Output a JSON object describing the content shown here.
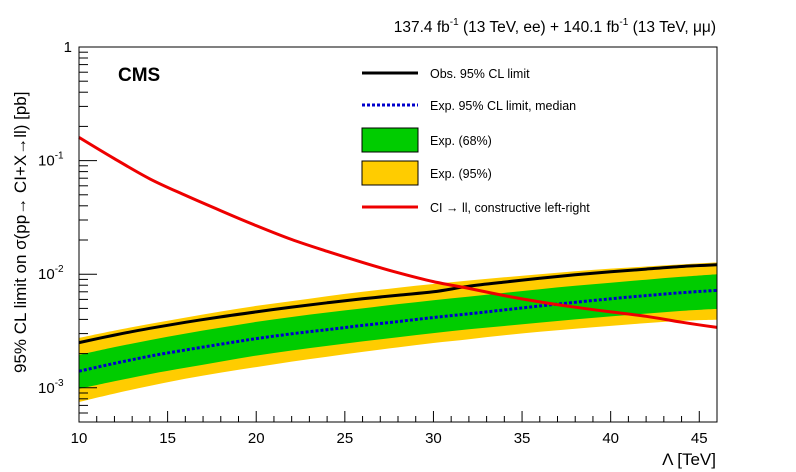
{
  "chart_data": {
    "type": "line",
    "top_label": {
      "lumi_ee": "137.4 fb",
      "sup_ee": "-1",
      "mid": " (13 TeV, ee) + 140.1 fb",
      "sup_mm": "-1",
      "tail": " (13 TeV, μμ)"
    },
    "experiment_label": "CMS",
    "xlabel": "Λ [TeV]",
    "ylabel": "95% CL limit on σ(pp→ CI+X→ll) [pb]",
    "xlim": [
      10,
      46
    ],
    "ylim": [
      0.0005,
      1
    ],
    "yscale": "log",
    "x_ticks": [
      "10",
      "15",
      "20",
      "25",
      "30",
      "35",
      "40",
      "45"
    ],
    "x_tick_values": [
      10,
      15,
      20,
      25,
      30,
      35,
      40,
      45
    ],
    "y_ticks": [
      {
        "base": "10",
        "exp": "-3",
        "value": 0.001
      },
      {
        "base": "10",
        "exp": "-2",
        "value": 0.01
      },
      {
        "base": "10",
        "exp": "-1",
        "value": 0.1
      },
      {
        "base": "1",
        "exp": "",
        "value": 1
      }
    ],
    "legend": [
      {
        "label": "Obs. 95% CL limit",
        "style": "line",
        "color": "#000000"
      },
      {
        "label": "Exp. 95% CL limit, median",
        "style": "dotted",
        "color": "#0000cc"
      },
      {
        "label": "Exp. (68%)",
        "style": "box",
        "color": "#00cc00"
      },
      {
        "label": "Exp. (95%)",
        "style": "box",
        "color": "#ffcc00"
      },
      {
        "label": "CI → ll, constructive left-right",
        "style": "line",
        "color": "#ee0000"
      }
    ],
    "legend_position": "top-right",
    "x": [
      10,
      12,
      14,
      16,
      18,
      20,
      22,
      24,
      26,
      28,
      30,
      32,
      34,
      36,
      38,
      40,
      42,
      44,
      46
    ],
    "series": [
      {
        "name": "Obs. 95% CL limit",
        "color": "#000000",
        "values": [
          0.0025,
          0.00291,
          0.00334,
          0.00377,
          0.00421,
          0.00466,
          0.00513,
          0.0056,
          0.00607,
          0.00654,
          0.007,
          0.00784,
          0.00852,
          0.00921,
          0.00987,
          0.01049,
          0.0111,
          0.0117,
          0.0121
        ]
      },
      {
        "name": "Exp. 95% CL limit, median",
        "color": "#0000cc",
        "values": [
          0.0014,
          0.00164,
          0.0019,
          0.00215,
          0.00242,
          0.00271,
          0.00299,
          0.00325,
          0.00354,
          0.00383,
          0.00416,
          0.00448,
          0.00485,
          0.00525,
          0.00566,
          0.00608,
          0.00648,
          0.00688,
          0.0072
        ]
      },
      {
        "name": "CI → ll, constructive left-right",
        "color": "#ee0000",
        "values": [
          0.16,
          0.104,
          0.069,
          0.0495,
          0.0362,
          0.0268,
          0.0202,
          0.0159,
          0.0127,
          0.0103,
          0.0086,
          0.0075,
          0.00648,
          0.0057,
          0.00512,
          0.00466,
          0.00426,
          0.00378,
          0.0034
        ]
      }
    ],
    "bands": [
      {
        "name": "Exp. (95%)",
        "color": "#ffcc00",
        "low": [
          0.00075,
          0.00089,
          0.00104,
          0.0012,
          0.00136,
          0.00152,
          0.0017,
          0.00188,
          0.00207,
          0.00227,
          0.00248,
          0.00268,
          0.0029,
          0.00312,
          0.00331,
          0.00351,
          0.00371,
          0.00389,
          0.00398
        ],
        "high": [
          0.00275,
          0.00319,
          0.00365,
          0.00415,
          0.0047,
          0.00526,
          0.0058,
          0.0064,
          0.007,
          0.0076,
          0.0082,
          0.0088,
          0.0094,
          0.01,
          0.0106,
          0.0112,
          0.0117,
          0.0122,
          0.0127
        ]
      },
      {
        "name": "Exp. (68%)",
        "color": "#00cc00",
        "low": [
          0.00098,
          0.00114,
          0.00132,
          0.0015,
          0.0017,
          0.00192,
          0.00213,
          0.00234,
          0.00256,
          0.00279,
          0.00303,
          0.00327,
          0.0035,
          0.00375,
          0.004,
          0.00425,
          0.0045,
          0.00475,
          0.00495
        ],
        "high": [
          0.00195,
          0.00228,
          0.00263,
          0.003,
          0.00339,
          0.0038,
          0.0042,
          0.0046,
          0.005,
          0.00545,
          0.0059,
          0.00635,
          0.00685,
          0.00738,
          0.0079,
          0.00842,
          0.00895,
          0.00948,
          0.01
        ]
      }
    ]
  }
}
